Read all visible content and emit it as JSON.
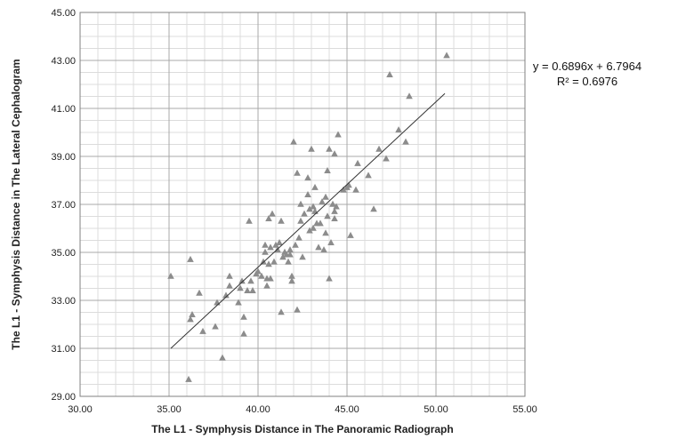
{
  "chart_data": {
    "type": "scatter",
    "title": "",
    "xlabel": "The L1 - Symphysis Distance in The Panoramic Radiograph",
    "ylabel": "The L1 - Symphysis Distance in The Lateral Cephalogram",
    "xlim": [
      30,
      55
    ],
    "ylim": [
      29,
      45
    ],
    "x_ticks": [
      "30.00",
      "35.00",
      "40.00",
      "45.00",
      "50.00",
      "55.00"
    ],
    "y_ticks": [
      "29.00",
      "31.00",
      "33.00",
      "35.00",
      "37.00",
      "39.00",
      "41.00",
      "43.00",
      "45.00"
    ],
    "grid": true,
    "marker": "triangle",
    "marker_color": "#8c8c8c",
    "trendline": {
      "slope": 0.6896,
      "intercept": 6.7964,
      "x_start": 35.1,
      "x_end": 50.5
    },
    "equation_text": "y = 0.6896x + 6.7964",
    "r2_text": "R² = 0.6976",
    "points": [
      [
        35.1,
        34.0
      ],
      [
        36.1,
        29.7
      ],
      [
        36.2,
        32.2
      ],
      [
        36.2,
        34.7
      ],
      [
        36.3,
        32.4
      ],
      [
        36.7,
        33.3
      ],
      [
        36.9,
        31.7
      ],
      [
        37.6,
        31.9
      ],
      [
        37.7,
        32.9
      ],
      [
        38.0,
        30.6
      ],
      [
        38.2,
        33.2
      ],
      [
        38.4,
        33.6
      ],
      [
        38.4,
        34.0
      ],
      [
        38.9,
        32.9
      ],
      [
        39.0,
        33.5
      ],
      [
        39.1,
        33.8
      ],
      [
        39.2,
        32.3
      ],
      [
        39.2,
        31.6
      ],
      [
        39.4,
        33.4
      ],
      [
        39.5,
        36.3
      ],
      [
        39.6,
        33.8
      ],
      [
        39.7,
        33.4
      ],
      [
        39.9,
        34.1
      ],
      [
        40.0,
        34.2
      ],
      [
        40.2,
        34.0
      ],
      [
        40.3,
        34.6
      ],
      [
        40.4,
        35.0
      ],
      [
        40.4,
        35.3
      ],
      [
        40.5,
        33.6
      ],
      [
        40.5,
        33.9
      ],
      [
        40.6,
        34.5
      ],
      [
        40.6,
        36.4
      ],
      [
        40.7,
        33.9
      ],
      [
        40.7,
        35.2
      ],
      [
        40.8,
        36.6
      ],
      [
        40.9,
        34.6
      ],
      [
        41.0,
        35.3
      ],
      [
        41.1,
        35.1
      ],
      [
        41.2,
        35.4
      ],
      [
        41.3,
        36.3
      ],
      [
        41.3,
        32.5
      ],
      [
        41.4,
        34.8
      ],
      [
        41.5,
        35.0
      ],
      [
        41.6,
        34.9
      ],
      [
        41.7,
        34.6
      ],
      [
        41.8,
        34.9
      ],
      [
        41.8,
        35.1
      ],
      [
        41.9,
        33.8
      ],
      [
        41.9,
        34.0
      ],
      [
        42.0,
        39.6
      ],
      [
        42.1,
        35.3
      ],
      [
        42.2,
        32.6
      ],
      [
        42.2,
        38.3
      ],
      [
        42.3,
        35.6
      ],
      [
        42.4,
        36.3
      ],
      [
        42.4,
        37.0
      ],
      [
        42.5,
        34.8
      ],
      [
        42.6,
        36.6
      ],
      [
        42.8,
        38.1
      ],
      [
        42.8,
        37.4
      ],
      [
        42.9,
        36.8
      ],
      [
        42.9,
        35.9
      ],
      [
        43.0,
        39.3
      ],
      [
        43.1,
        36.0
      ],
      [
        43.1,
        36.9
      ],
      [
        43.2,
        37.7
      ],
      [
        43.2,
        36.7
      ],
      [
        43.3,
        36.2
      ],
      [
        43.4,
        35.2
      ],
      [
        43.5,
        36.2
      ],
      [
        43.6,
        37.1
      ],
      [
        43.7,
        35.1
      ],
      [
        43.8,
        35.8
      ],
      [
        43.8,
        37.3
      ],
      [
        43.9,
        36.5
      ],
      [
        43.9,
        38.4
      ],
      [
        44.0,
        33.9
      ],
      [
        44.0,
        39.3
      ],
      [
        44.1,
        35.4
      ],
      [
        44.2,
        37.0
      ],
      [
        44.3,
        36.4
      ],
      [
        44.3,
        36.7
      ],
      [
        44.3,
        39.1
      ],
      [
        44.4,
        36.9
      ],
      [
        44.5,
        39.9
      ],
      [
        44.8,
        37.6
      ],
      [
        45.0,
        37.7
      ],
      [
        45.1,
        37.8
      ],
      [
        45.2,
        35.7
      ],
      [
        45.5,
        37.6
      ],
      [
        45.6,
        38.7
      ],
      [
        46.2,
        38.2
      ],
      [
        46.5,
        36.8
      ],
      [
        46.8,
        39.3
      ],
      [
        47.2,
        38.9
      ],
      [
        47.4,
        42.4
      ],
      [
        47.9,
        40.1
      ],
      [
        48.3,
        39.6
      ],
      [
        48.5,
        41.5
      ],
      [
        50.6,
        43.2
      ]
    ]
  }
}
